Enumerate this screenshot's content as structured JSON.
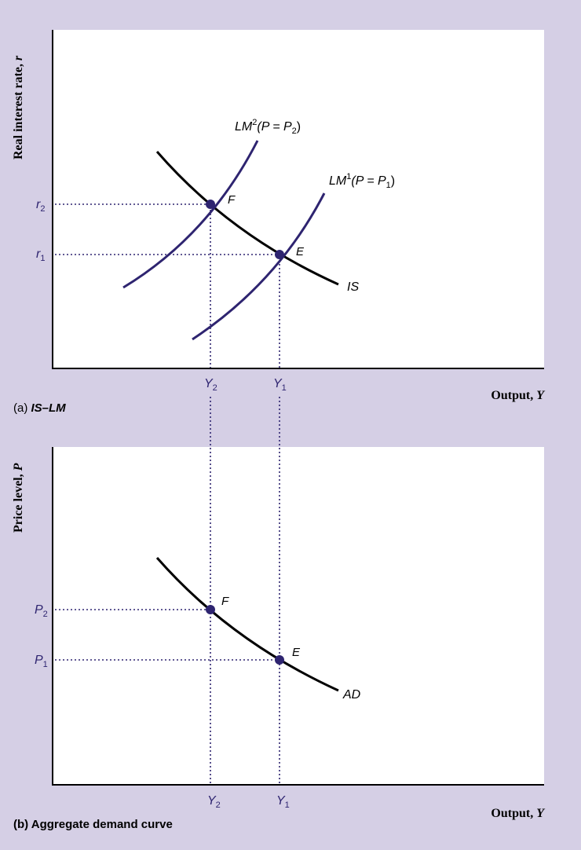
{
  "colors": {
    "background": "#d5cfe5",
    "panel": "#ffffff",
    "axis": "#000000",
    "curve_black": "#000000",
    "curve_purple": "#2e2470",
    "dot": "#2e2470",
    "guide": "#2e2470"
  },
  "panel_a": {
    "caption_prefix": "(a) ",
    "caption_title": "IS–LM",
    "y_axis_label": {
      "text": "Real interest rate, ",
      "var": "r"
    },
    "x_axis_label": {
      "text": "Output, ",
      "var": "Y"
    },
    "y_ticks": [
      {
        "base": "r",
        "sub": "2"
      },
      {
        "base": "r",
        "sub": "1"
      }
    ],
    "x_ticks": [
      {
        "base": "Y",
        "sub": "2"
      },
      {
        "base": "Y",
        "sub": "1"
      }
    ],
    "curves": {
      "IS": "IS",
      "LM2": {
        "base": "LM",
        "sup": "2",
        "expr_open": "(P = P",
        "expr_sub": "2",
        "expr_close": ")"
      },
      "LM1": {
        "base": "LM",
        "sup": "1",
        "expr_open": "(P = P",
        "expr_sub": "1",
        "expr_close": ")"
      }
    },
    "points": {
      "F": "F",
      "E": "E"
    }
  },
  "panel_b": {
    "caption": "(b) Aggregate demand curve",
    "y_axis_label": {
      "text": "Price level, ",
      "var": "P"
    },
    "x_axis_label": {
      "text": "Output, ",
      "var": "Y"
    },
    "y_ticks": [
      {
        "base": "P",
        "sub": "2"
      },
      {
        "base": "P",
        "sub": "1"
      }
    ],
    "x_ticks": [
      {
        "base": "Y",
        "sub": "2"
      },
      {
        "base": "Y",
        "sub": "1"
      }
    ],
    "curves": {
      "AD": "AD"
    },
    "points": {
      "F": "F",
      "E": "E"
    }
  }
}
